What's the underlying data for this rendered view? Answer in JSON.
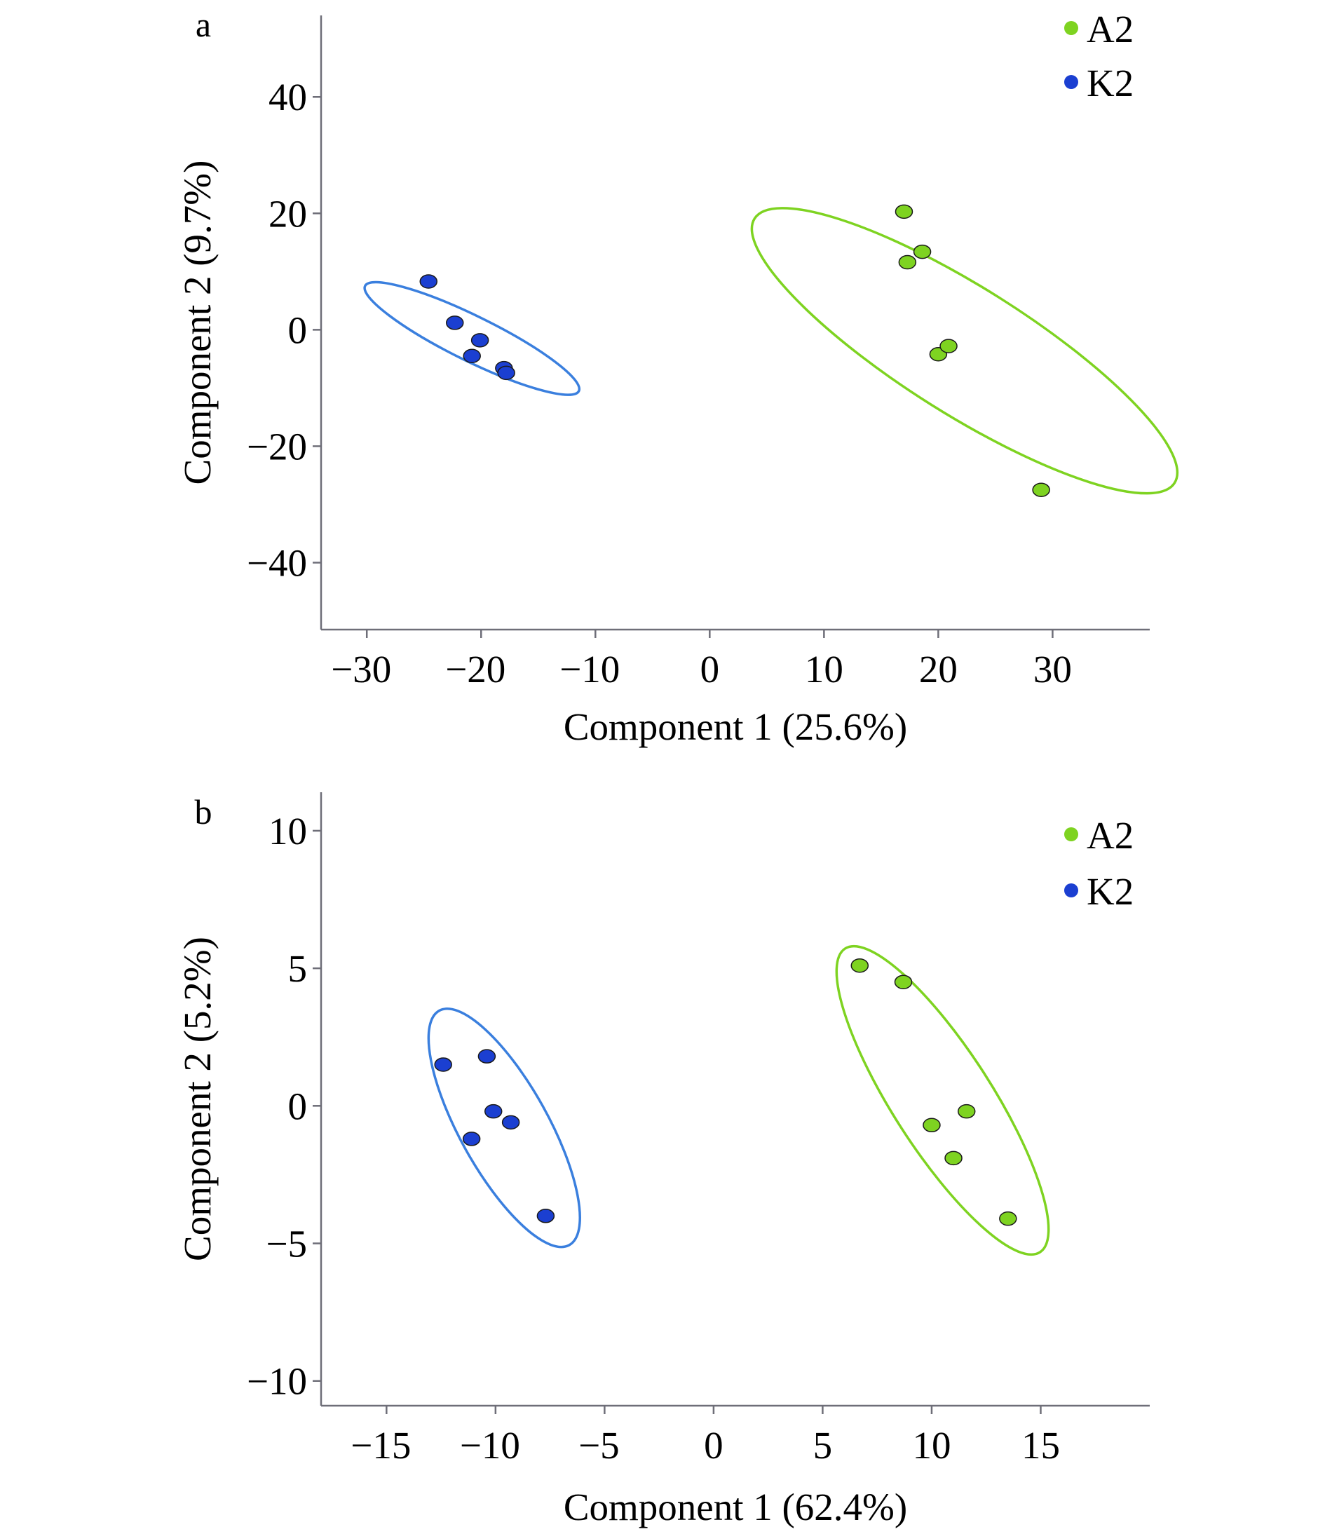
{
  "chart_data": [
    {
      "type": "scatter",
      "panel_label": "a",
      "xlabel": "Component 1 (25.6%)",
      "ylabel": "Component 2 (9.7%)",
      "xlim": [
        -34,
        38.5
      ],
      "ylim": [
        -51.5,
        54
      ],
      "xticks": [
        -30,
        -20,
        -10,
        0,
        10,
        20,
        30
      ],
      "yticks": [
        40,
        20,
        0,
        -20,
        -40
      ],
      "legend_position": "top-right",
      "series": [
        {
          "name": "A2",
          "color": "#7ed321",
          "points": [
            [
              17,
              20.3
            ],
            [
              17.3,
              11.6
            ],
            [
              18.6,
              13.4
            ],
            [
              20,
              -4.2
            ],
            [
              20.9,
              -2.8
            ],
            [
              29,
              -27.5
            ]
          ],
          "ellipse": {
            "center": [
              22.3,
              -3.6
            ],
            "rx": 29.2,
            "ry": 8.1,
            "angle_deg": -51
          }
        },
        {
          "name": "K2",
          "color": "#1b3fd1",
          "points": [
            [
              -24.6,
              8.3
            ],
            [
              -22.3,
              1.2
            ],
            [
              -20.8,
              -4.5
            ],
            [
              -20.1,
              -1.8
            ],
            [
              -18,
              -6.6
            ],
            [
              -17.8,
              -7.4
            ]
          ],
          "ellipse": {
            "center": [
              -20.8,
              -1.5
            ],
            "rx": 13,
            "ry": 3.1,
            "angle_deg": -44
          }
        }
      ]
    },
    {
      "type": "scatter",
      "panel_label": "b",
      "xlabel": "Component 1 (62.4%)",
      "ylabel": "Component 2 (5.2%)",
      "xlim": [
        -18,
        20
      ],
      "ylim": [
        -10.9,
        11.4
      ],
      "xticks": [
        -15,
        -10,
        -5,
        0,
        5,
        10,
        15
      ],
      "yticks": [
        10,
        5,
        0,
        -5,
        -10
      ],
      "legend_position": "top-right",
      "series": [
        {
          "name": "A2",
          "color": "#7ed321",
          "points": [
            [
              6.7,
              5.1
            ],
            [
              8.7,
              4.5
            ],
            [
              10,
              -0.7
            ],
            [
              11,
              -1.9
            ],
            [
              11.6,
              -0.2
            ],
            [
              13.5,
              -4.1
            ]
          ],
          "ellipse": {
            "center": [
              10.5,
              0.2
            ],
            "rx": 7.1,
            "ry": 2.1,
            "angle_deg": -51
          }
        },
        {
          "name": "K2",
          "color": "#1b3fd1",
          "points": [
            [
              -12.4,
              1.5
            ],
            [
              -11.1,
              -1.2
            ],
            [
              -10.4,
              1.8
            ],
            [
              -10.1,
              -0.2
            ],
            [
              -9.3,
              -0.6
            ],
            [
              -7.7,
              -4
            ]
          ],
          "ellipse": {
            "center": [
              -9.6,
              -0.8
            ],
            "rx": 5.2,
            "ry": 1.9,
            "angle_deg": -55
          }
        }
      ]
    }
  ]
}
